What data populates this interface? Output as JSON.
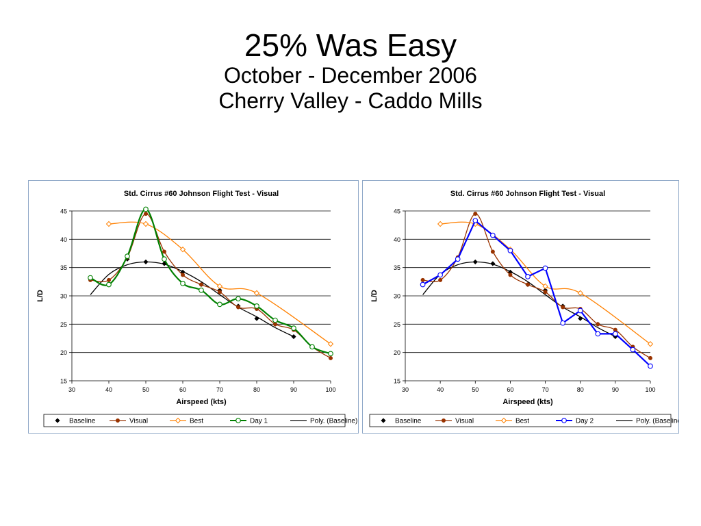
{
  "slide": {
    "title": "25% Was Easy",
    "subtitle_1": "October - December 2006",
    "subtitle_2": "Cherry Valley - Caddo Mills"
  },
  "chart_data": [
    {
      "type": "line",
      "title": "Std. Cirrus #60 Johnson Flight Test - Visual",
      "xlabel": "Airspeed (kts)",
      "ylabel": "L/D",
      "xlim": [
        30,
        100
      ],
      "ylim": [
        15,
        45
      ],
      "xticks": [
        30,
        40,
        50,
        60,
        70,
        80,
        90,
        100
      ],
      "yticks": [
        15,
        20,
        25,
        30,
        35,
        40,
        45
      ],
      "grid": "horizontal",
      "legend": "bottom",
      "series": [
        {
          "name": "Baseline",
          "color": "#000000",
          "marker": "diamond-filled",
          "smooth": false,
          "line": false,
          "x": [
            45,
            50,
            55,
            60,
            65,
            70,
            75,
            80,
            85,
            90
          ],
          "y": [
            36.5,
            36,
            35.7,
            34.2,
            32,
            31,
            28.2,
            26,
            25,
            22.8
          ]
        },
        {
          "name": "Visual",
          "color": "#993300",
          "marker": "circle-filled",
          "smooth": true,
          "line": true,
          "x": [
            35,
            40,
            45,
            50,
            55,
            60,
            65,
            70,
            75,
            80,
            85,
            90,
            95,
            100
          ],
          "y": [
            32.8,
            32.8,
            36.8,
            44.5,
            37.8,
            33.7,
            32,
            30.7,
            28,
            27.7,
            25,
            24,
            21,
            19
          ]
        },
        {
          "name": "Best",
          "color": "#ff8000",
          "marker": "diamond-open",
          "smooth": true,
          "line": true,
          "x": [
            40,
            50,
            60,
            70,
            80,
            100
          ],
          "y": [
            42.7,
            42.7,
            38.2,
            31.7,
            30.5,
            21.5
          ]
        },
        {
          "name": "Day 1",
          "color": "#008000",
          "marker": "circle-open",
          "smooth": true,
          "line": true,
          "x": [
            35,
            40,
            45,
            50,
            55,
            60,
            65,
            70,
            75,
            80,
            85,
            90,
            95,
            100
          ],
          "y": [
            33.2,
            32,
            37,
            45.3,
            36.5,
            32.2,
            31,
            28.5,
            29.5,
            28.2,
            25.7,
            24.3,
            21,
            19.8
          ]
        },
        {
          "name": "Poly. (Baseline)",
          "color": "#000000",
          "marker": "none",
          "smooth": true,
          "line": true,
          "x": [
            35,
            40,
            45,
            50,
            55,
            60,
            65,
            70,
            75,
            80,
            85,
            90
          ],
          "y": [
            30.2,
            33.8,
            35.5,
            36,
            35.6,
            34.3,
            32.5,
            30.2,
            28,
            26.3,
            24.4,
            22.8
          ]
        }
      ]
    },
    {
      "type": "line",
      "title": "Std. Cirrus #60 Johnson Flight Test - Visual",
      "xlabel": "Airspeed (kts)",
      "ylabel": "L/D",
      "xlim": [
        30,
        100
      ],
      "ylim": [
        15,
        45
      ],
      "xticks": [
        30,
        40,
        50,
        60,
        70,
        80,
        90,
        100
      ],
      "yticks": [
        15,
        20,
        25,
        30,
        35,
        40,
        45
      ],
      "grid": "horizontal",
      "legend": "bottom",
      "series": [
        {
          "name": "Baseline",
          "color": "#000000",
          "marker": "diamond-filled",
          "smooth": false,
          "line": false,
          "x": [
            45,
            50,
            55,
            60,
            65,
            70,
            75,
            80,
            85,
            90
          ],
          "y": [
            36.5,
            36,
            35.7,
            34.2,
            32,
            31,
            28.2,
            26,
            25,
            22.8
          ]
        },
        {
          "name": "Visual",
          "color": "#993300",
          "marker": "circle-filled",
          "smooth": true,
          "line": true,
          "x": [
            35,
            40,
            45,
            50,
            55,
            60,
            65,
            70,
            75,
            80,
            85,
            90,
            95,
            100
          ],
          "y": [
            32.8,
            32.8,
            36.8,
            44.5,
            37.8,
            33.7,
            32,
            30.7,
            28,
            27.7,
            25,
            24,
            21,
            19
          ]
        },
        {
          "name": "Best",
          "color": "#ff8000",
          "marker": "diamond-open",
          "smooth": true,
          "line": true,
          "x": [
            40,
            50,
            60,
            70,
            80,
            100
          ],
          "y": [
            42.7,
            42.7,
            38.2,
            31.7,
            30.5,
            21.5
          ]
        },
        {
          "name": "Day 2",
          "color": "#0000ff",
          "marker": "circle-open",
          "smooth": false,
          "line": true,
          "x": [
            35,
            40,
            45,
            50,
            55,
            60,
            65,
            70,
            75,
            80,
            85,
            90,
            95,
            100
          ],
          "y": [
            32,
            33.7,
            36.5,
            43.3,
            40.7,
            38,
            33.4,
            34.9,
            25.2,
            27.4,
            23.3,
            23.3,
            20.5,
            17.6
          ]
        },
        {
          "name": "Poly. (Baseline)",
          "color": "#000000",
          "marker": "none",
          "smooth": true,
          "line": true,
          "x": [
            35,
            40,
            45,
            50,
            55,
            60,
            65,
            70,
            75,
            80,
            85,
            90
          ],
          "y": [
            30.2,
            33.8,
            35.5,
            36,
            35.6,
            34.3,
            32.5,
            30.2,
            28,
            26.3,
            24.4,
            22.8
          ]
        }
      ]
    }
  ]
}
